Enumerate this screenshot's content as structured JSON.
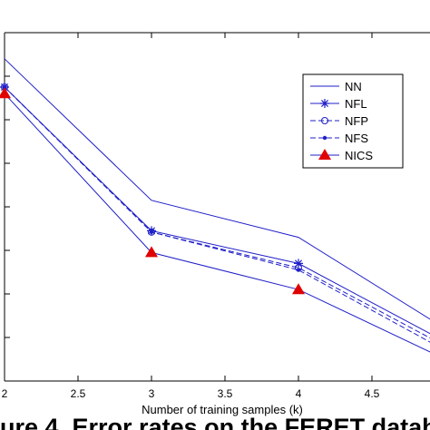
{
  "chart_data": {
    "type": "line",
    "title": "",
    "xlabel": "Number of training samples (k)",
    "ylabel": "",
    "x": [
      2,
      3,
      4,
      5
    ],
    "xlim": [
      2,
      5
    ],
    "x_tick_labels": [
      "2",
      "2.5",
      "3",
      "3.5",
      "4",
      "4.5"
    ],
    "grid": false,
    "legend_position": "top-right",
    "series": [
      {
        "name": "NN",
        "style": "solid line",
        "color": "#1f1fc8",
        "values": [
          7.4,
          4.15,
          3.3,
          1.2
        ]
      },
      {
        "name": "NFL",
        "style": "solid line, star marker",
        "color": "#1f1fc8",
        "values": [
          6.75,
          3.45,
          2.7,
          0.9
        ]
      },
      {
        "name": "NFP",
        "style": "dashed line, open circle marker",
        "color": "#1f1fc8",
        "values": [
          6.75,
          3.42,
          2.6,
          0.8
        ]
      },
      {
        "name": "NFS",
        "style": "dashed line, dot marker",
        "color": "#1f1fc8",
        "values": [
          6.75,
          3.42,
          2.55,
          0.7
        ]
      },
      {
        "name": "NICS",
        "style": "solid line, red triangle marker",
        "color": "#1f1fc8",
        "marker_color": "#e00000",
        "values": [
          6.6,
          2.95,
          2.1,
          0.5
        ]
      }
    ]
  },
  "caption": {
    "text": "ure 4. Error rates on the FERET datab"
  }
}
